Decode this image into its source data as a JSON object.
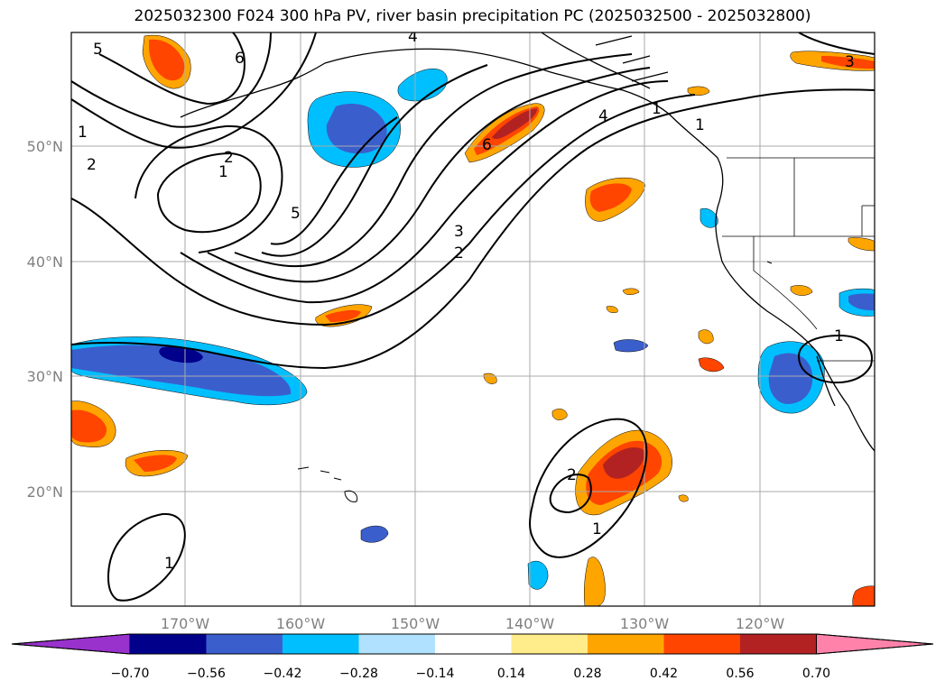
{
  "title": "2025032300 F024 300 hPa PV, river basin precipitation PC (2025032500 - 2025032800)",
  "map": {
    "lat_labels": [
      "50°N",
      "40°N",
      "30°N",
      "20°N"
    ],
    "lon_labels": [
      "170°W",
      "160°W",
      "150°W",
      "140°W",
      "130°W",
      "120°W"
    ],
    "lat_values": [
      50,
      40,
      30,
      20
    ],
    "lon_values": [
      -170,
      -160,
      -150,
      -140,
      -130,
      -120
    ],
    "extent": {
      "lon_min": -180,
      "lon_max": -110,
      "lat_min": 10,
      "lat_max": 60
    },
    "grid": true,
    "pv_contour_labels": [
      "5",
      "6",
      "4",
      "3",
      "1",
      "2",
      "2",
      "1",
      "1",
      "5",
      "6",
      "4",
      "1",
      "3",
      "2",
      "1",
      "2",
      "1",
      "1"
    ]
  },
  "colorbar": {
    "tick_labels": [
      "−0.70",
      "−0.56",
      "−0.42",
      "−0.28",
      "−0.14",
      "0.14",
      "0.28",
      "0.42",
      "0.56",
      "0.70"
    ],
    "colors": [
      "#9932cc",
      "#00008b",
      "#3a5fcd",
      "#00bfff",
      "#b0e2ff",
      "#ffffff",
      "#ffec8b",
      "#ffa500",
      "#ff4500",
      "#b22222",
      "#ff82ab"
    ]
  },
  "palette": {
    "neg_dark": "#00008b",
    "neg_mid": "#3a5fcd",
    "neg_light": "#00bfff",
    "pos_light": "#ffec8b",
    "pos_mid": "#ffa500",
    "pos_strong": "#ff4500",
    "pos_dark": "#b22222"
  }
}
